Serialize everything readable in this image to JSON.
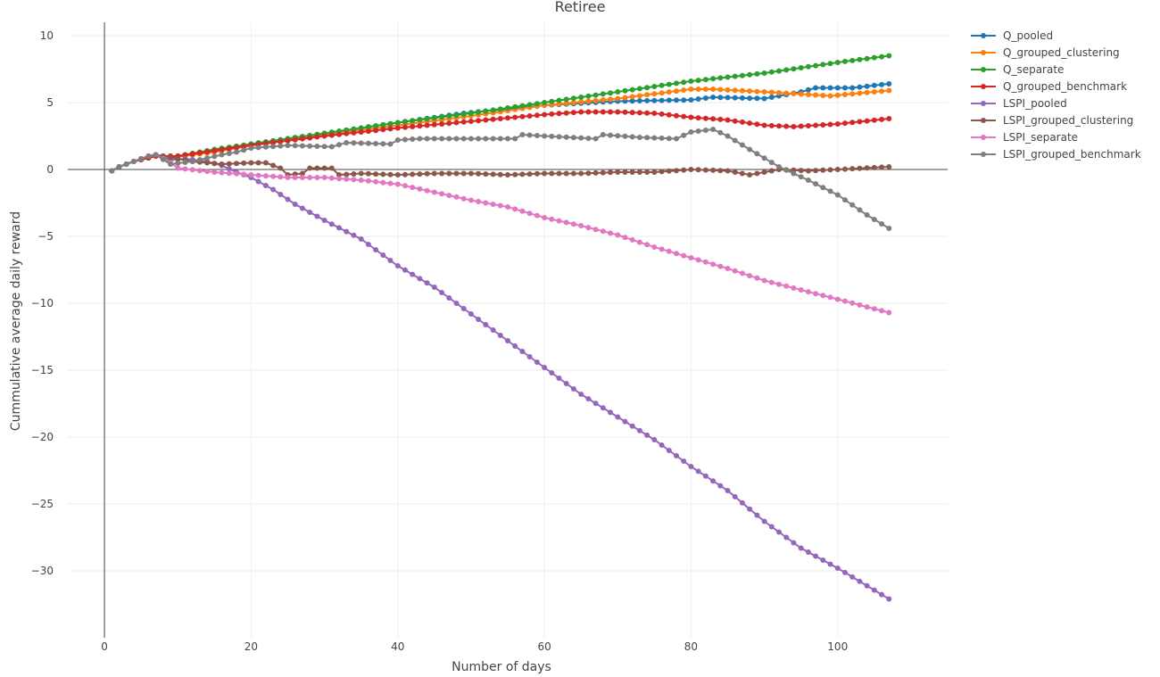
{
  "chart_data": {
    "type": "line",
    "title": "Retiree",
    "xlabel": "Number of days",
    "ylabel": "Cummulative average daily reward",
    "xlim": [
      -5,
      115
    ],
    "ylim": [
      -35,
      11
    ],
    "xticks": [
      0,
      20,
      40,
      60,
      80,
      100
    ],
    "yticks": [
      10,
      5,
      0,
      -5,
      -10,
      -15,
      -20,
      -25,
      -30
    ],
    "ytick_labels": [
      "10",
      "5",
      "0",
      "−5",
      "−10",
      "−15",
      "−20",
      "−25",
      "−30"
    ],
    "grid": true,
    "zero_lines": true,
    "legend_position": "top-right",
    "x_start": 1,
    "x_end": 107,
    "series": [
      {
        "name": "Q_pooled",
        "color": "#1f77b4",
        "anchors": [
          [
            1,
            -0.1
          ],
          [
            2,
            0.2
          ],
          [
            4,
            0.6
          ],
          [
            7,
            1.0
          ],
          [
            10,
            1.0
          ],
          [
            15,
            1.4
          ],
          [
            20,
            1.9
          ],
          [
            30,
            2.7
          ],
          [
            40,
            3.5
          ],
          [
            49,
            4.2
          ],
          [
            60,
            4.8
          ],
          [
            70,
            5.1
          ],
          [
            80,
            5.2
          ],
          [
            83,
            5.4
          ],
          [
            90,
            5.3
          ],
          [
            95,
            5.8
          ],
          [
            97,
            6.1
          ],
          [
            102,
            6.1
          ],
          [
            107,
            6.4
          ]
        ]
      },
      {
        "name": "Q_grouped_clustering",
        "color": "#ff7f0e",
        "anchors": [
          [
            1,
            -0.1
          ],
          [
            2,
            0.2
          ],
          [
            4,
            0.6
          ],
          [
            7,
            1.0
          ],
          [
            10,
            0.95
          ],
          [
            15,
            1.3
          ],
          [
            20,
            1.8
          ],
          [
            30,
            2.6
          ],
          [
            40,
            3.3
          ],
          [
            50,
            4.0
          ],
          [
            60,
            4.8
          ],
          [
            70,
            5.3
          ],
          [
            80,
            6.0
          ],
          [
            83,
            6.0
          ],
          [
            90,
            5.8
          ],
          [
            96,
            5.6
          ],
          [
            99,
            5.5
          ],
          [
            103,
            5.7
          ],
          [
            107,
            5.9
          ]
        ]
      },
      {
        "name": "Q_separate",
        "color": "#2ca02c",
        "anchors": [
          [
            1,
            -0.1
          ],
          [
            2,
            0.2
          ],
          [
            4,
            0.6
          ],
          [
            7,
            1.0
          ],
          [
            10,
            1.0
          ],
          [
            15,
            1.5
          ],
          [
            20,
            1.9
          ],
          [
            30,
            2.7
          ],
          [
            40,
            3.5
          ],
          [
            50,
            4.2
          ],
          [
            60,
            5.0
          ],
          [
            70,
            5.8
          ],
          [
            80,
            6.6
          ],
          [
            90,
            7.2
          ],
          [
            100,
            8.0
          ],
          [
            107,
            8.5
          ]
        ]
      },
      {
        "name": "Q_grouped_benchmark",
        "color": "#d62728",
        "anchors": [
          [
            1,
            -0.1
          ],
          [
            2,
            0.2
          ],
          [
            4,
            0.6
          ],
          [
            7,
            1.0
          ],
          [
            10,
            1.0
          ],
          [
            15,
            1.4
          ],
          [
            20,
            1.8
          ],
          [
            30,
            2.5
          ],
          [
            40,
            3.1
          ],
          [
            50,
            3.6
          ],
          [
            60,
            4.1
          ],
          [
            65,
            4.3
          ],
          [
            70,
            4.3
          ],
          [
            75,
            4.2
          ],
          [
            80,
            3.9
          ],
          [
            85,
            3.7
          ],
          [
            90,
            3.3
          ],
          [
            94,
            3.2
          ],
          [
            100,
            3.4
          ],
          [
            107,
            3.8
          ]
        ]
      },
      {
        "name": "LSPI_pooled",
        "color": "#9467bd",
        "anchors": [
          [
            1,
            -0.1
          ],
          [
            2,
            0.2
          ],
          [
            4,
            0.6
          ],
          [
            6,
            1.0
          ],
          [
            7,
            1.1
          ],
          [
            9,
            0.7
          ],
          [
            11,
            0.8
          ],
          [
            14,
            0.6
          ],
          [
            16,
            0.3
          ],
          [
            18,
            -0.2
          ],
          [
            20,
            -0.6
          ],
          [
            23,
            -1.5
          ],
          [
            26,
            -2.6
          ],
          [
            30,
            -3.8
          ],
          [
            35,
            -5.2
          ],
          [
            40,
            -7.2
          ],
          [
            45,
            -8.8
          ],
          [
            50,
            -10.8
          ],
          [
            55,
            -12.8
          ],
          [
            60,
            -14.8
          ],
          [
            65,
            -16.8
          ],
          [
            70,
            -18.5
          ],
          [
            75,
            -20.2
          ],
          [
            80,
            -22.2
          ],
          [
            85,
            -24.0
          ],
          [
            90,
            -26.3
          ],
          [
            95,
            -28.3
          ],
          [
            100,
            -29.8
          ],
          [
            107,
            -32.1
          ]
        ]
      },
      {
        "name": "LSPI_grouped_clustering",
        "color": "#8c564b",
        "anchors": [
          [
            1,
            -0.1
          ],
          [
            2,
            0.2
          ],
          [
            4,
            0.6
          ],
          [
            6,
            1.0
          ],
          [
            7,
            1.1
          ],
          [
            9,
            0.9
          ],
          [
            10,
            0.8
          ],
          [
            12,
            0.6
          ],
          [
            16,
            0.4
          ],
          [
            20,
            0.5
          ],
          [
            22,
            0.5
          ],
          [
            24,
            0.1
          ],
          [
            25,
            -0.4
          ],
          [
            27,
            -0.3
          ],
          [
            28,
            0.1
          ],
          [
            31,
            0.1
          ],
          [
            32,
            -0.4
          ],
          [
            35,
            -0.3
          ],
          [
            40,
            -0.4
          ],
          [
            45,
            -0.3
          ],
          [
            50,
            -0.3
          ],
          [
            55,
            -0.4
          ],
          [
            60,
            -0.3
          ],
          [
            65,
            -0.3
          ],
          [
            70,
            -0.2
          ],
          [
            75,
            -0.2
          ],
          [
            80,
            0.0
          ],
          [
            85,
            -0.1
          ],
          [
            88,
            -0.4
          ],
          [
            92,
            0.0
          ],
          [
            96,
            -0.1
          ],
          [
            100,
            0.0
          ],
          [
            107,
            0.2
          ]
        ]
      },
      {
        "name": "LSPI_separate",
        "color": "#e377c2",
        "anchors": [
          [
            1,
            -0.1
          ],
          [
            2,
            0.2
          ],
          [
            4,
            0.6
          ],
          [
            6,
            1.0
          ],
          [
            7,
            1.1
          ],
          [
            9,
            0.5
          ],
          [
            10,
            0.1
          ],
          [
            15,
            -0.2
          ],
          [
            20,
            -0.4
          ],
          [
            25,
            -0.6
          ],
          [
            30,
            -0.6
          ],
          [
            35,
            -0.8
          ],
          [
            40,
            -1.1
          ],
          [
            45,
            -1.7
          ],
          [
            50,
            -2.3
          ],
          [
            55,
            -2.8
          ],
          [
            60,
            -3.6
          ],
          [
            65,
            -4.2
          ],
          [
            70,
            -4.9
          ],
          [
            75,
            -5.8
          ],
          [
            80,
            -6.6
          ],
          [
            85,
            -7.4
          ],
          [
            90,
            -8.3
          ],
          [
            95,
            -9.0
          ],
          [
            100,
            -9.7
          ],
          [
            107,
            -10.7
          ]
        ]
      },
      {
        "name": "LSPI_grouped_benchmark",
        "color": "#7f7f7f",
        "anchors": [
          [
            1,
            -0.1
          ],
          [
            2,
            0.2
          ],
          [
            4,
            0.6
          ],
          [
            6,
            1.0
          ],
          [
            7,
            1.1
          ],
          [
            9,
            0.4
          ],
          [
            12,
            0.6
          ],
          [
            16,
            1.1
          ],
          [
            18,
            1.3
          ],
          [
            20,
            1.6
          ],
          [
            25,
            1.8
          ],
          [
            31,
            1.7
          ],
          [
            33,
            2.0
          ],
          [
            39,
            1.9
          ],
          [
            40,
            2.2
          ],
          [
            43,
            2.3
          ],
          [
            48,
            2.3
          ],
          [
            56,
            2.3
          ],
          [
            57,
            2.6
          ],
          [
            60,
            2.5
          ],
          [
            67,
            2.3
          ],
          [
            68,
            2.6
          ],
          [
            73,
            2.4
          ],
          [
            78,
            2.3
          ],
          [
            80,
            2.8
          ],
          [
            83,
            3.0
          ],
          [
            85,
            2.5
          ],
          [
            88,
            1.5
          ],
          [
            92,
            0.2
          ],
          [
            96,
            -0.8
          ],
          [
            100,
            -1.9
          ],
          [
            104,
            -3.4
          ],
          [
            107,
            -4.4
          ]
        ]
      }
    ]
  }
}
